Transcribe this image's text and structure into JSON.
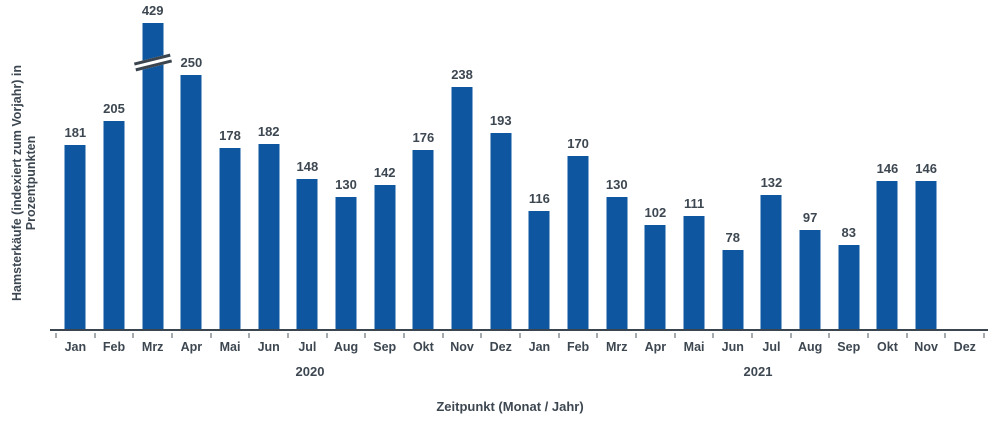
{
  "chart_data": {
    "type": "bar",
    "title": "",
    "xlabel": "Zeitpunkt (Monat / Jahr)",
    "ylabel_lines": [
      "Hamsterkäufe (indexiert zum Vorjahr) in",
      "Prozentpunkten"
    ],
    "groups": [
      {
        "year": "2020",
        "categories": [
          "Jan",
          "Feb",
          "Mrz",
          "Apr",
          "Mai",
          "Jun",
          "Jul",
          "Aug",
          "Sep",
          "Okt",
          "Nov",
          "Dez"
        ],
        "values": [
          181,
          205,
          429,
          250,
          178,
          182,
          148,
          130,
          142,
          176,
          238,
          193
        ]
      },
      {
        "year": "2021",
        "categories": [
          "Jan",
          "Feb",
          "Mrz",
          "Apr",
          "Mai",
          "Jun",
          "Jul",
          "Aug",
          "Sep",
          "Okt",
          "Nov",
          "Dez"
        ],
        "values": [
          116,
          170,
          130,
          102,
          111,
          78,
          132,
          97,
          83,
          146,
          146,
          null
        ]
      }
    ],
    "axis_break": {
      "year": "2020",
      "month": "Mrz",
      "value": 429
    },
    "ylim": [
      0,
      260
    ],
    "grid": false,
    "legend": false,
    "bar_color": "#0E57A0",
    "text_color": "#3D4751",
    "axis_color": "#3A454F",
    "tick_color": "#A6ABB0"
  }
}
